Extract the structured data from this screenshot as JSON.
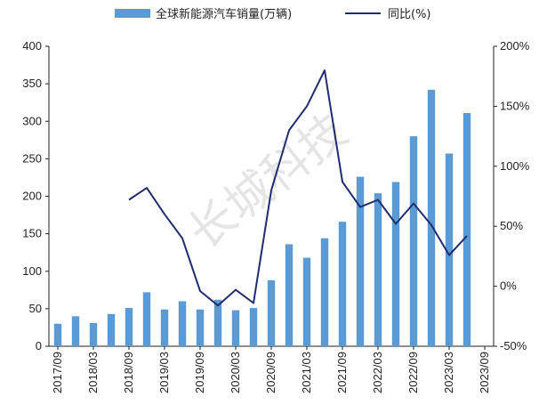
{
  "chart_data": {
    "type": "bar+line",
    "watermark": "长城科技",
    "legend": {
      "bar_label": "全球新能源汽车销量(万辆)",
      "line_label": "同比(%)",
      "placement": "top"
    },
    "left_axis": {
      "ylim": [
        0,
        400
      ],
      "ticks": [
        "0",
        "50",
        "100",
        "150",
        "200",
        "250",
        "300",
        "350",
        "400"
      ]
    },
    "right_axis": {
      "ylim": [
        -50,
        200
      ],
      "ticks": [
        "-50%",
        "0%",
        "50%",
        "100%",
        "150%",
        "200%"
      ]
    },
    "x_tick_labels": [
      "2017/09",
      "2018/03",
      "2018/09",
      "2019/03",
      "2019/09",
      "2020/03",
      "2020/09",
      "2021/03",
      "2021/09",
      "2022/03",
      "2022/09",
      "2023/03",
      "2023/09"
    ],
    "categories": [
      "2017/09",
      "2017/12",
      "2018/03",
      "2018/06",
      "2018/09",
      "2018/12",
      "2019/03",
      "2019/06",
      "2019/09",
      "2019/12",
      "2020/03",
      "2020/06",
      "2020/09",
      "2020/12",
      "2021/03",
      "2021/06",
      "2021/09",
      "2021/12",
      "2022/03",
      "2022/06",
      "2022/09",
      "2022/12",
      "2023/03",
      "2023/06"
    ],
    "series": [
      {
        "name": "全球新能源汽车销量(万辆)",
        "type": "bar",
        "color": "#5b9bd5",
        "values": [
          30,
          40,
          31,
          43,
          51,
          72,
          49,
          60,
          49,
          62,
          48,
          51,
          88,
          136,
          118,
          144,
          166,
          226,
          204,
          219,
          280,
          342,
          257,
          311
        ]
      },
      {
        "name": "同比(%)",
        "type": "line",
        "color": "#1f2d6e",
        "values": [
          null,
          null,
          null,
          null,
          72,
          82,
          60,
          40,
          -4,
          -16,
          -3,
          -14,
          80,
          130,
          150,
          180,
          87,
          66,
          72,
          52,
          69,
          51,
          26,
          42
        ]
      }
    ],
    "grid": false
  }
}
